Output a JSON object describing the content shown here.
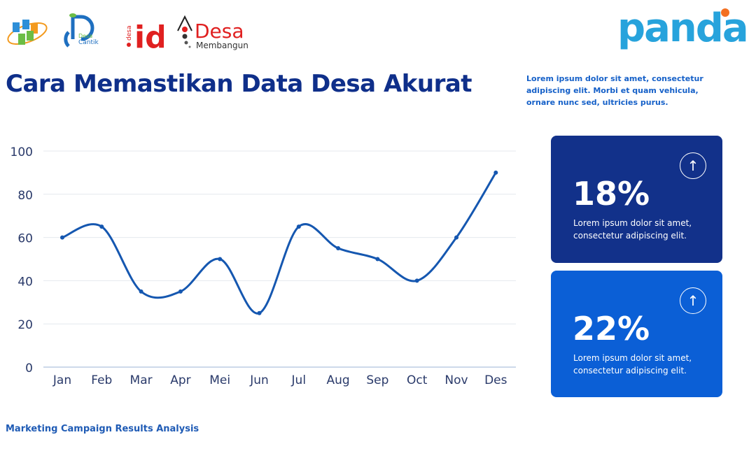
{
  "logos": {
    "bps": "BPS",
    "desa_cantik": "Desa Cantik",
    "desa_id": "desa id",
    "desa_membangun": "Desa Membangun",
    "panda": "panda"
  },
  "header": {
    "title": "Cara Memastikan Data Desa Akurat",
    "description": "Lorem ipsum dolor sit amet, consectetur adipiscing elit. Morbi et quam vehicula, ornare nunc sed, ultricies purus."
  },
  "cards": [
    {
      "value": "18%",
      "text": "Lorem ipsum dolor sit amet, consectetur adipiscing elit.",
      "color": "#12318a",
      "icon": "arrow-up-circle-icon"
    },
    {
      "value": "22%",
      "text": "Lorem ipsum dolor sit amet, consectetur adipiscing elit.",
      "color": "#0b5fd6",
      "icon": "arrow-up-circle-icon"
    }
  ],
  "footer": "Marketing Campaign Results Analysis",
  "chart_data": {
    "type": "line",
    "smooth": true,
    "categories": [
      "Jan",
      "Feb",
      "Mar",
      "Apr",
      "Mei",
      "Jun",
      "Jul",
      "Aug",
      "Sep",
      "Oct",
      "Nov",
      "Des"
    ],
    "values": [
      60,
      65,
      35,
      35,
      50,
      25,
      65,
      55,
      50,
      40,
      60,
      90
    ],
    "ylim": [
      0,
      100
    ],
    "yticks": [
      0,
      20,
      40,
      60,
      80,
      100
    ],
    "grid": true,
    "line_color": "#1557b0",
    "legend": "none"
  }
}
